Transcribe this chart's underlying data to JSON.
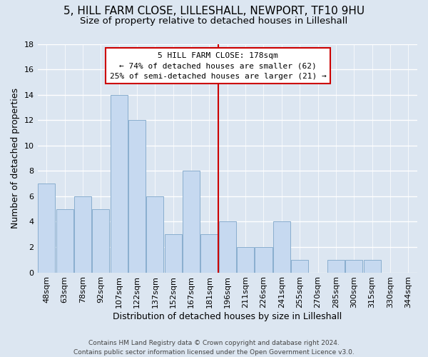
{
  "title": "5, HILL FARM CLOSE, LILLESHALL, NEWPORT, TF10 9HU",
  "subtitle": "Size of property relative to detached houses in Lilleshall",
  "xlabel": "Distribution of detached houses by size in Lilleshall",
  "ylabel": "Number of detached properties",
  "footer_line1": "Contains HM Land Registry data © Crown copyright and database right 2024.",
  "footer_line2": "Contains public sector information licensed under the Open Government Licence v3.0.",
  "bar_labels": [
    "48sqm",
    "63sqm",
    "78sqm",
    "92sqm",
    "107sqm",
    "122sqm",
    "137sqm",
    "152sqm",
    "167sqm",
    "181sqm",
    "196sqm",
    "211sqm",
    "226sqm",
    "241sqm",
    "255sqm",
    "270sqm",
    "285sqm",
    "300sqm",
    "315sqm",
    "330sqm",
    "344sqm"
  ],
  "bar_values": [
    7,
    5,
    6,
    5,
    14,
    12,
    6,
    3,
    8,
    3,
    4,
    2,
    2,
    4,
    1,
    0,
    1,
    1,
    1,
    0,
    0
  ],
  "bar_color": "#c6d9f0",
  "bar_edge_color": "#89aece",
  "reference_line_color": "#cc0000",
  "annotation_title": "5 HILL FARM CLOSE: 178sqm",
  "annotation_line1": "← 74% of detached houses are smaller (62)",
  "annotation_line2": "25% of semi-detached houses are larger (21) →",
  "annotation_box_color": "#ffffff",
  "annotation_box_edge_color": "#cc0000",
  "ylim": [
    0,
    18
  ],
  "yticks": [
    0,
    2,
    4,
    6,
    8,
    10,
    12,
    14,
    16,
    18
  ],
  "grid_color": "#ffffff",
  "bg_color": "#dce6f1",
  "title_fontsize": 11,
  "subtitle_fontsize": 9.5,
  "xlabel_fontsize": 9,
  "ylabel_fontsize": 9,
  "tick_fontsize": 8,
  "footer_fontsize": 6.5,
  "annot_fontsize": 8
}
